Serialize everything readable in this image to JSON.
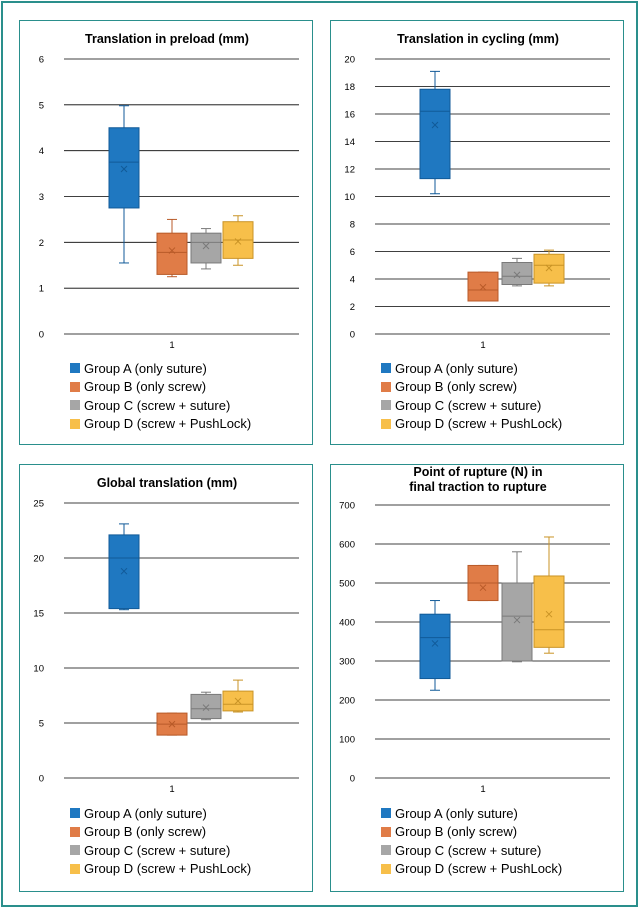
{
  "colors": {
    "frame": "#2a8f8c",
    "groups": [
      {
        "fill": "#1f78c1",
        "stroke": "#115a98"
      },
      {
        "fill": "#e07c47",
        "stroke": "#b85a28"
      },
      {
        "fill": "#a6a6a6",
        "stroke": "#7a7a7a"
      },
      {
        "fill": "#f7bf4a",
        "stroke": "#c99325"
      }
    ]
  },
  "legend": [
    "Group A (only suture)",
    "Group B (only screw)",
    "Group C (screw + suture)",
    "Group D (screw + PushLock)"
  ],
  "chart_data": [
    {
      "type": "box",
      "title_lines": [
        "Translation in preload (mm)"
      ],
      "x_tick": "1",
      "ylim": [
        0,
        6
      ],
      "yticks": [
        0,
        1,
        2,
        3,
        4,
        5,
        6
      ],
      "series": [
        {
          "name": "Group A (only suture)",
          "min": 1.55,
          "q1": 2.75,
          "median": 3.75,
          "q3": 4.5,
          "max": 4.98,
          "mean": 3.6
        },
        {
          "name": "Group B (only screw)",
          "min": 1.25,
          "q1": 1.3,
          "median": 1.78,
          "q3": 2.2,
          "max": 2.5,
          "mean": 1.82
        },
        {
          "name": "Group C (screw + suture)",
          "min": 1.42,
          "q1": 1.55,
          "median": 2.0,
          "q3": 2.2,
          "max": 2.3,
          "mean": 1.92
        },
        {
          "name": "Group D (screw + PushLock)",
          "min": 1.5,
          "q1": 1.65,
          "median": 2.05,
          "q3": 2.45,
          "max": 2.58,
          "mean": 2.02
        }
      ]
    },
    {
      "type": "box",
      "title_lines": [
        "Translation in cycling (mm)"
      ],
      "x_tick": "1",
      "ylim": [
        0,
        20
      ],
      "yticks": [
        0,
        2,
        4,
        6,
        8,
        10,
        12,
        14,
        16,
        18,
        20
      ],
      "series": [
        {
          "name": "Group A (only suture)",
          "min": 10.2,
          "q1": 11.3,
          "median": 16.2,
          "q3": 17.8,
          "max": 19.1,
          "mean": 15.2
        },
        {
          "name": "Group B (only screw)",
          "min": 2.4,
          "q1": 2.4,
          "median": 3.2,
          "q3": 4.5,
          "max": 4.5,
          "mean": 3.4
        },
        {
          "name": "Group C (screw + suture)",
          "min": 3.5,
          "q1": 3.6,
          "median": 4.2,
          "q3": 5.2,
          "max": 5.5,
          "mean": 4.3
        },
        {
          "name": "Group D (screw + PushLock)",
          "min": 3.5,
          "q1": 3.7,
          "median": 5.0,
          "q3": 5.8,
          "max": 6.1,
          "mean": 4.8
        }
      ]
    },
    {
      "type": "box",
      "title_lines": [
        "Global translation (mm)"
      ],
      "x_tick": "1",
      "ylim": [
        0,
        25
      ],
      "yticks": [
        0,
        5,
        10,
        15,
        20,
        25
      ],
      "series": [
        {
          "name": "Group A (only suture)",
          "min": 15.3,
          "q1": 15.4,
          "median": 20.0,
          "q3": 22.1,
          "max": 23.1,
          "mean": 18.8
        },
        {
          "name": "Group B (only screw)",
          "min": 3.9,
          "q1": 3.9,
          "median": 4.9,
          "q3": 5.9,
          "max": 5.9,
          "mean": 4.9
        },
        {
          "name": "Group C (screw + suture)",
          "min": 5.3,
          "q1": 5.4,
          "median": 6.3,
          "q3": 7.6,
          "max": 7.8,
          "mean": 6.4
        },
        {
          "name": "Group D (screw + PushLock)",
          "min": 6.0,
          "q1": 6.1,
          "median": 6.7,
          "q3": 7.9,
          "max": 8.9,
          "mean": 7.0
        }
      ]
    },
    {
      "type": "box",
      "title_lines": [
        "Point of rupture (N) in",
        "final traction to rupture"
      ],
      "x_tick": "1",
      "ylim": [
        0,
        700
      ],
      "yticks": [
        0,
        100,
        200,
        300,
        400,
        500,
        600,
        700
      ],
      "series": [
        {
          "name": "Group A (only suture)",
          "min": 225,
          "q1": 255,
          "median": 360,
          "q3": 420,
          "max": 455,
          "mean": 345
        },
        {
          "name": "Group B (only screw)",
          "min": 455,
          "q1": 455,
          "median": 500,
          "q3": 545,
          "max": 545,
          "mean": 488
        },
        {
          "name": "Group C (screw + suture)",
          "min": 298,
          "q1": 300,
          "median": 415,
          "q3": 500,
          "max": 580,
          "mean": 405
        },
        {
          "name": "Group D (screw + PushLock)",
          "min": 320,
          "q1": 335,
          "median": 380,
          "q3": 518,
          "max": 618,
          "mean": 420
        }
      ]
    }
  ]
}
